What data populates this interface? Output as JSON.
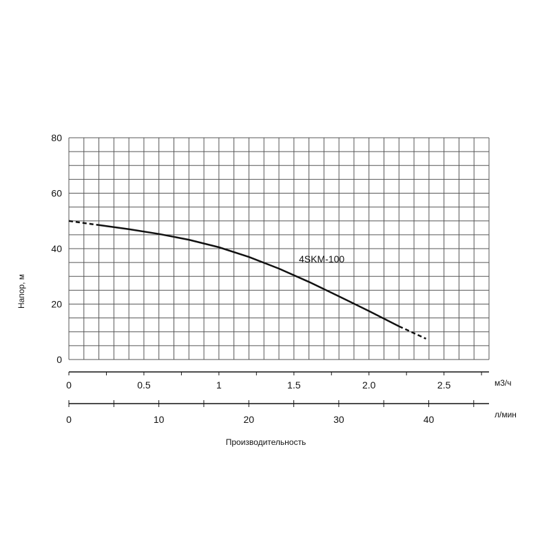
{
  "chart_data": {
    "type": "line",
    "ylabel": "Напор, м",
    "xlabel": "Производительность",
    "ylim": [
      0,
      80
    ],
    "yticks": [
      "0",
      "20",
      "40",
      "60",
      "80"
    ],
    "x_axis_primary": {
      "unit": "м3/ч",
      "lim": [
        0,
        2.8
      ],
      "ticks": [
        "0",
        "0.5",
        "1",
        "1.5",
        "2.0",
        "2.5"
      ]
    },
    "x_axis_secondary": {
      "unit": "л/мин",
      "lim": [
        0,
        46.7
      ],
      "ticks": [
        "0",
        "10",
        "20",
        "30",
        "40"
      ]
    },
    "grid": true,
    "series": [
      {
        "name": "4SKM-100",
        "x": [
          0,
          0.2,
          0.4,
          0.6,
          0.8,
          1.0,
          1.2,
          1.4,
          1.6,
          1.8,
          2.0,
          2.2,
          2.38
        ],
        "y": [
          50,
          48.5,
          47,
          45.3,
          43.2,
          40.5,
          37,
          32.8,
          28,
          22.8,
          17.5,
          12,
          7.5
        ],
        "solid_range": [
          0.2,
          2.2
        ]
      }
    ],
    "line_color": "#111111",
    "grid_color": "#555555"
  }
}
